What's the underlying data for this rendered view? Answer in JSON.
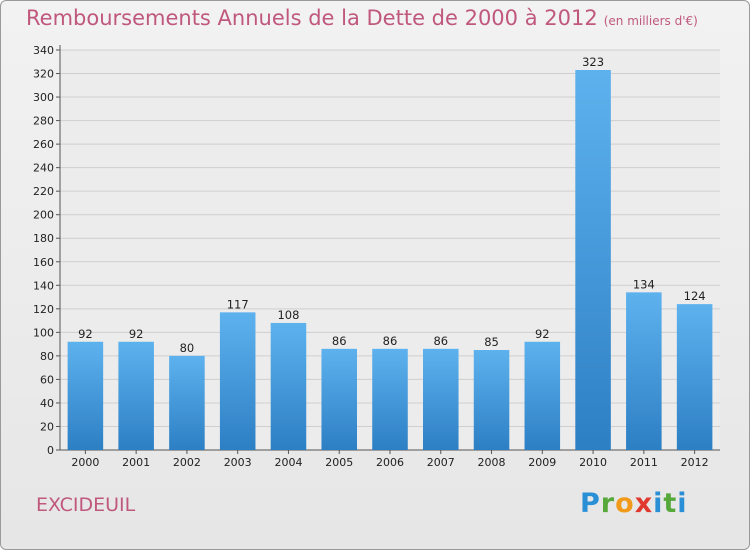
{
  "title": "Remboursements Annuels de la Dette de 2000 à 2012",
  "unit": "(en milliers d'€)",
  "place": "EXCIDEUIL",
  "logo": [
    "P",
    "r",
    "o",
    "x",
    "i",
    "t",
    "i"
  ],
  "colors": {
    "bar": "#4aa3e6",
    "title": "#c0587e"
  },
  "chart_data": {
    "type": "bar",
    "title": "Remboursements Annuels de la Dette de 2000 à 2012",
    "ylabel": "(en milliers d'€)",
    "categories": [
      "2000",
      "2001",
      "2002",
      "2003",
      "2004",
      "2005",
      "2006",
      "2007",
      "2008",
      "2009",
      "2010",
      "2011",
      "2012"
    ],
    "values": [
      92,
      92,
      80,
      117,
      108,
      86,
      86,
      86,
      85,
      92,
      323,
      134,
      124
    ],
    "ylim": [
      0,
      340
    ],
    "yticks": [
      0,
      20,
      40,
      60,
      80,
      100,
      120,
      140,
      160,
      180,
      200,
      220,
      240,
      260,
      280,
      300,
      320,
      340
    ],
    "grid": true
  }
}
